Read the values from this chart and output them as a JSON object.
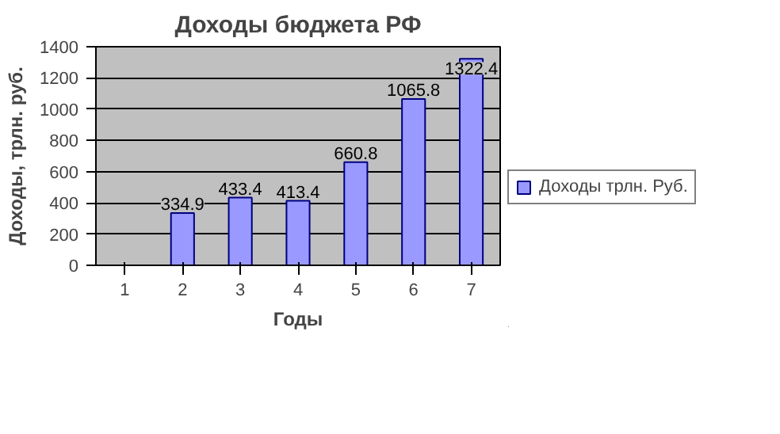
{
  "chart_data": {
    "type": "bar",
    "title": "Доходы бюджета РФ",
    "xlabel": "Годы",
    "ylabel": "Доходы, трлн. руб.",
    "categories": [
      "1",
      "2",
      "3",
      "4",
      "5",
      "6",
      "7"
    ],
    "series": [
      {
        "name": "Доходы трлн. Руб.",
        "color": "#9999ff",
        "values": [
          null,
          334.9,
          433.4,
          413.4,
          660.8,
          1065.8,
          1322.4
        ]
      }
    ],
    "ylim": [
      0,
      1400
    ],
    "yticks": [
      0,
      200,
      400,
      600,
      800,
      1000,
      1200,
      1400
    ],
    "grid": "y",
    "legend": "right",
    "data_labels": true
  }
}
